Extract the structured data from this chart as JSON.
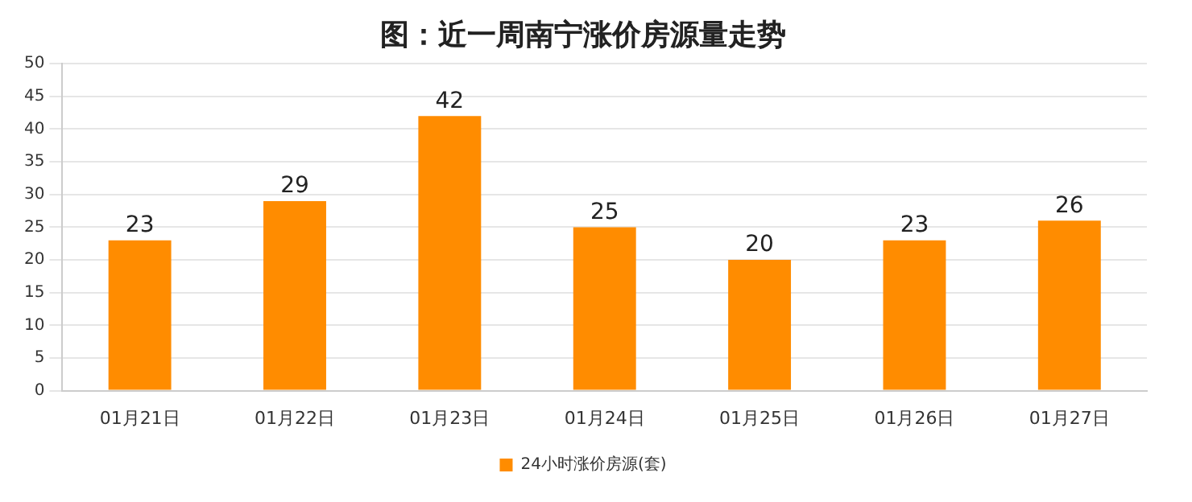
{
  "chart_data": {
    "type": "bar",
    "title": "图：近一周南宁涨价房源量走势",
    "categories": [
      "01月21日",
      "01月22日",
      "01月23日",
      "01月24日",
      "01月25日",
      "01月26日",
      "01月27日"
    ],
    "series": [
      {
        "name": "24小时涨价房源(套)",
        "color": "#ff8c00",
        "values": [
          23,
          29,
          42,
          25,
          20,
          23,
          26
        ]
      }
    ],
    "ylim": [
      0,
      50
    ],
    "yticks": [
      0,
      5,
      10,
      15,
      20,
      25,
      30,
      35,
      40,
      45,
      50
    ],
    "grid": "y",
    "legend": "bottom",
    "data_labels": true
  }
}
